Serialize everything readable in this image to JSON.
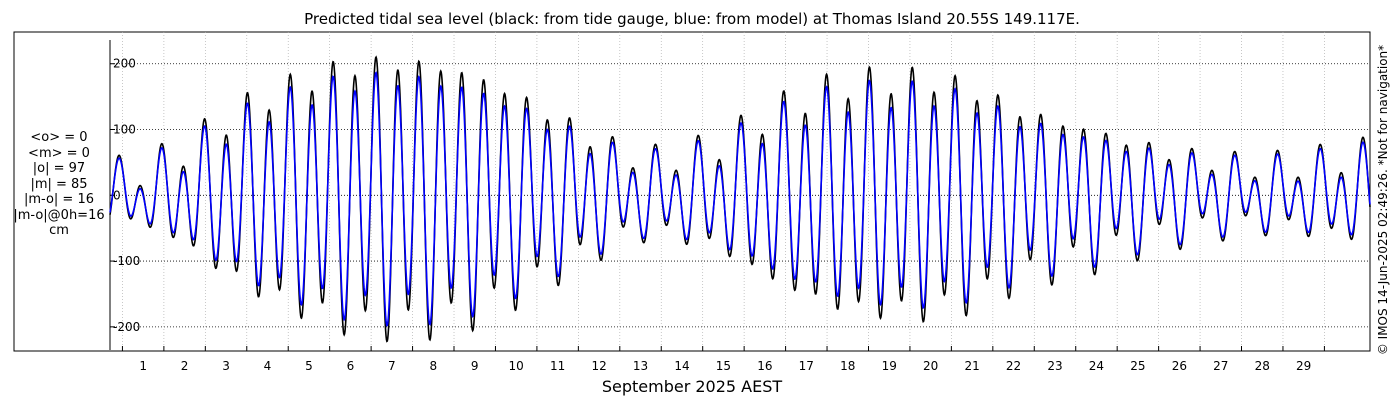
{
  "chart_data": {
    "type": "line",
    "title": "Predicted tidal sea level (black: from tide gauge, blue: from model) at Thomas Island 20.55S 149.117E.",
    "xlabel": "September 2025 AEST",
    "ylabel": "",
    "x_unit": "day of September 2025",
    "xlim": [
      0.2,
      30.6
    ],
    "ylim": [
      -220,
      230
    ],
    "xticks": [
      1,
      2,
      3,
      4,
      5,
      6,
      7,
      8,
      9,
      10,
      11,
      12,
      13,
      14,
      15,
      16,
      17,
      18,
      19,
      20,
      21,
      22,
      23,
      24,
      25,
      26,
      27,
      28,
      29
    ],
    "yticks": [
      -200,
      -100,
      0,
      100,
      200
    ],
    "grid": true,
    "series": [
      {
        "name": "from tide gauge",
        "color": "#000000"
      },
      {
        "name": "from model",
        "color": "#0000ff"
      }
    ],
    "tidal_model": {
      "unit": "cm",
      "gauge": {
        "semidiurnal_amplitude": [
          [
            0.2,
            35
          ],
          [
            1.0,
            40
          ],
          [
            2.0,
            70
          ],
          [
            3.0,
            115
          ],
          [
            4.0,
            150
          ],
          [
            5.0,
            175
          ],
          [
            6.0,
            195
          ],
          [
            7.0,
            200
          ],
          [
            8.0,
            195
          ],
          [
            9.0,
            180
          ],
          [
            10.0,
            150
          ],
          [
            11.0,
            115
          ],
          [
            12.0,
            80
          ],
          [
            13.0,
            55
          ],
          [
            14.0,
            60
          ],
          [
            15.0,
            80
          ],
          [
            16.0,
            120
          ],
          [
            17.0,
            150
          ],
          [
            18.0,
            170
          ],
          [
            19.0,
            175
          ],
          [
            20.0,
            175
          ],
          [
            21.0,
            160
          ],
          [
            22.0,
            130
          ],
          [
            23.0,
            110
          ],
          [
            24.0,
            95
          ],
          [
            25.0,
            75
          ],
          [
            26.0,
            60
          ],
          [
            27.0,
            50
          ],
          [
            28.0,
            45
          ],
          [
            29.0,
            50
          ],
          [
            30.6,
            65
          ]
        ],
        "semidiurnal_period_days": 0.5175,
        "semidiurnal_phase_day": 0.93,
        "diurnal_amplitude": 25,
        "diurnal_period_days": 1.0,
        "diurnal_phase_day": 0.45,
        "baseline_cm": 0
      },
      "model": {
        "amplitude_scale": 0.88,
        "diurnal_amplitude": 25
      }
    }
  },
  "stats": {
    "lines": [
      "<o> = 0",
      "<m> = 0",
      "|o| = 97",
      "|m| = 85",
      "|m-o| = 16",
      "|m-o|@0h=16",
      "cm"
    ]
  },
  "side_note": "© IMOS 14-Jun-2025 02:49:26. *Not for navigation*"
}
